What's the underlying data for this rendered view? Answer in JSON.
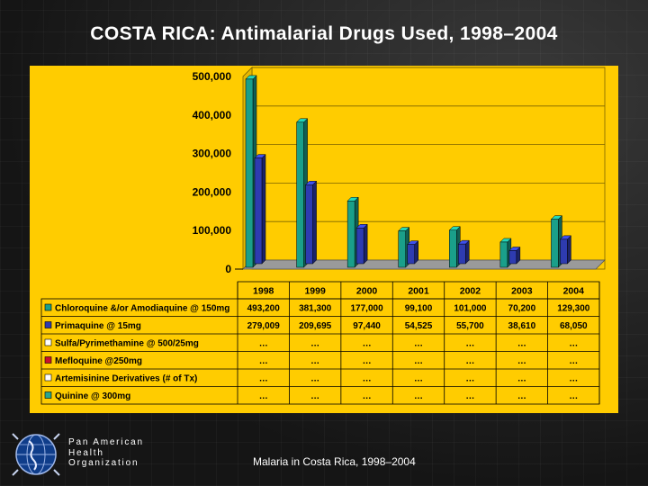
{
  "slide": {
    "title": "COSTA RICA: Antimalarial Drugs Used, 1998–2004",
    "caption": "Malaria in Costa Rica, 1998–2004",
    "org_lines": [
      "Pan American",
      "Health",
      "Organization"
    ]
  },
  "chart_data": {
    "type": "bar",
    "title": "COSTA RICA: Antimalarial Drugs Used, 1998–2004",
    "xlabel": "",
    "ylabel": "",
    "ylim": [
      0,
      500000
    ],
    "yticks": [
      0,
      100000,
      200000,
      300000,
      400000,
      500000
    ],
    "ytick_labels": [
      "0",
      "100,000",
      "200,000",
      "300,000",
      "400,000",
      "500,000"
    ],
    "grid": true,
    "categories": [
      "1998",
      "1999",
      "2000",
      "2001",
      "2002",
      "2003",
      "2004"
    ],
    "series": [
      {
        "name": "Chloroquine &/or Amodiaquine @ 150mg",
        "color": "#1a9f8a",
        "plotted": true,
        "values": [
          493200,
          381300,
          177000,
          99100,
          101000,
          70200,
          129300
        ],
        "labels": [
          "493,200",
          "381,300",
          "177,000",
          "99,100",
          "101,000",
          "70,200",
          "129,300"
        ]
      },
      {
        "name": "Primaquine @ 15mg",
        "color": "#2e3bb0",
        "plotted": true,
        "values": [
          279009,
          209695,
          97440,
          54525,
          55700,
          38610,
          68050
        ],
        "labels": [
          "279,009",
          "209,695",
          "97,440",
          "54,525",
          "55,700",
          "38,610",
          "68,050"
        ]
      },
      {
        "name": "Sulfa/Pyrimethamine @ 500/25mg",
        "color": "#ffffff",
        "plotted": false,
        "values": [
          null,
          null,
          null,
          null,
          null,
          null,
          null
        ],
        "labels": [
          "…",
          "…",
          "…",
          "…",
          "…",
          "…",
          "…"
        ]
      },
      {
        "name": "Mefloquine @250mg",
        "color": "#c8102e",
        "plotted": false,
        "values": [
          null,
          null,
          null,
          null,
          null,
          null,
          null
        ],
        "labels": [
          "…",
          "…",
          "…",
          "…",
          "…",
          "…",
          "…"
        ]
      },
      {
        "name": "Artemisinine Derivatives (# of Tx)",
        "color": "#ffffff",
        "plotted": false,
        "values": [
          null,
          null,
          null,
          null,
          null,
          null,
          null
        ],
        "labels": [
          "…",
          "…",
          "…",
          "…",
          "…",
          "…",
          "…"
        ]
      },
      {
        "name": "Quinine @ 300mg",
        "color": "#2aa58f",
        "plotted": false,
        "values": [
          null,
          null,
          null,
          null,
          null,
          null,
          null
        ],
        "labels": [
          "…",
          "…",
          "…",
          "…",
          "…",
          "…",
          "…"
        ]
      }
    ]
  }
}
